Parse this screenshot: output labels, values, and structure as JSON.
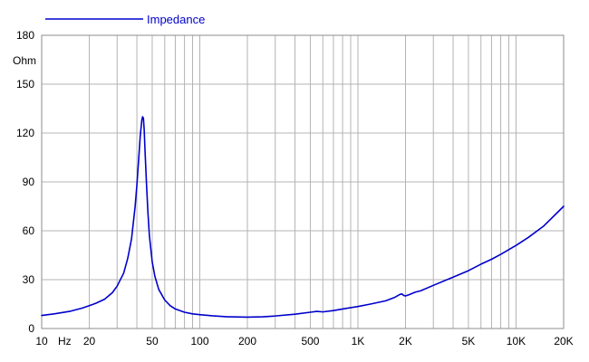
{
  "chart_data": {
    "type": "line",
    "title": "",
    "xlabel": "",
    "ylabel": "Ohm",
    "x_unit": "Hz",
    "x_scale": "log",
    "xlim": [
      10,
      20000
    ],
    "ylim": [
      0,
      180
    ],
    "grid": true,
    "legend_position": "top-left",
    "colors": {
      "series": "#0000cc",
      "grid": "#b4b4b4",
      "axis": "#000000"
    },
    "x_ticks": [
      {
        "value": 10,
        "label": "10"
      },
      {
        "value": 20,
        "label": "20"
      },
      {
        "value": 50,
        "label": "50"
      },
      {
        "value": 100,
        "label": "100"
      },
      {
        "value": 200,
        "label": "200"
      },
      {
        "value": 500,
        "label": "500"
      },
      {
        "value": 1000,
        "label": "1K"
      },
      {
        "value": 2000,
        "label": "2K"
      },
      {
        "value": 5000,
        "label": "5K"
      },
      {
        "value": 10000,
        "label": "10K"
      },
      {
        "value": 20000,
        "label": "20K"
      }
    ],
    "y_ticks": [
      0,
      30,
      60,
      90,
      120,
      150,
      180
    ],
    "series": [
      {
        "name": "Impedance",
        "x": [
          10,
          12,
          15,
          18,
          20,
          22,
          25,
          28,
          30,
          33,
          35,
          37,
          39,
          40,
          41,
          42,
          43,
          43.5,
          44,
          44.5,
          45,
          46,
          47,
          48,
          50,
          52,
          55,
          60,
          65,
          70,
          80,
          90,
          100,
          120,
          150,
          200,
          250,
          300,
          400,
          500,
          550,
          600,
          700,
          800,
          1000,
          1200,
          1500,
          1700,
          1850,
          1900,
          1950,
          2000,
          2100,
          2300,
          2500,
          3000,
          4000,
          5000,
          6000,
          7000,
          8000,
          10000,
          12000,
          15000,
          20000
        ],
        "values": [
          8,
          9,
          10.5,
          12.5,
          14,
          15.5,
          18,
          22,
          26,
          34,
          43,
          55,
          75,
          88,
          103,
          118,
          128,
          130,
          129,
          122,
          110,
          89,
          71,
          57,
          41,
          32,
          24,
          17.5,
          14,
          12,
          10,
          9,
          8.5,
          7.8,
          7.2,
          7,
          7.2,
          7.7,
          8.8,
          10,
          10.5,
          10.2,
          11,
          12,
          13.5,
          15,
          17,
          19,
          21,
          21.2,
          20.3,
          20,
          20.7,
          22.3,
          23.2,
          26.5,
          31.5,
          35.5,
          39.5,
          42.5,
          45.5,
          51,
          56,
          63,
          75
        ]
      }
    ]
  }
}
